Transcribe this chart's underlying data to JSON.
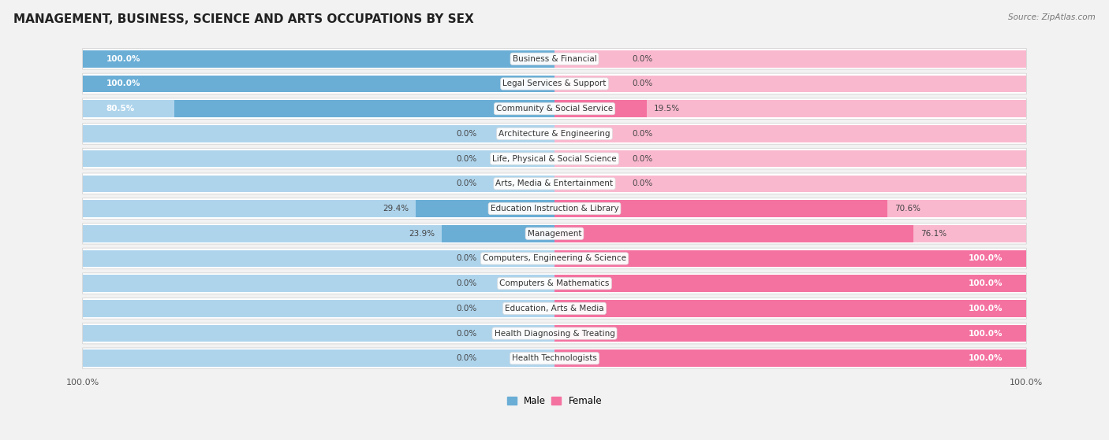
{
  "title": "MANAGEMENT, BUSINESS, SCIENCE AND ARTS OCCUPATIONS BY SEX",
  "source": "Source: ZipAtlas.com",
  "categories": [
    "Business & Financial",
    "Legal Services & Support",
    "Community & Social Service",
    "Architecture & Engineering",
    "Life, Physical & Social Science",
    "Arts, Media & Entertainment",
    "Education Instruction & Library",
    "Management",
    "Computers, Engineering & Science",
    "Computers & Mathematics",
    "Education, Arts & Media",
    "Health Diagnosing & Treating",
    "Health Technologists"
  ],
  "male": [
    100.0,
    100.0,
    80.5,
    0.0,
    0.0,
    0.0,
    29.4,
    23.9,
    0.0,
    0.0,
    0.0,
    0.0,
    0.0
  ],
  "female": [
    0.0,
    0.0,
    19.5,
    0.0,
    0.0,
    0.0,
    70.6,
    76.1,
    100.0,
    100.0,
    100.0,
    100.0,
    100.0
  ],
  "male_color": "#6AAED6",
  "female_color": "#F472A0",
  "male_color_light": "#AED4EC",
  "female_color_light": "#F9B8CE",
  "bg_color": "#f2f2f2",
  "row_bg_color": "#ffffff",
  "title_fontsize": 11,
  "label_fontsize": 7.5,
  "cat_fontsize": 7.5,
  "tick_fontsize": 8,
  "bar_height": 0.68,
  "figsize": [
    14.06,
    5.59
  ]
}
